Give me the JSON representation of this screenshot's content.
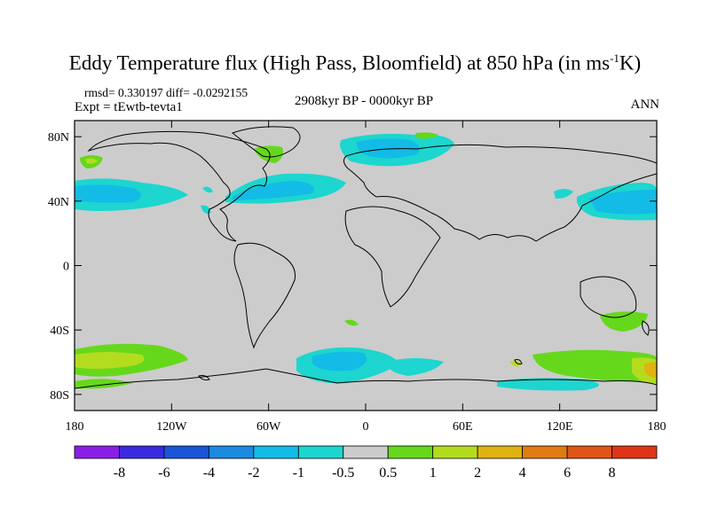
{
  "title": {
    "main": "Eddy Temperature flux (High Pass, Bloomfield) at 850 hPa (in ms",
    "sup": "-1",
    "tail": "K)"
  },
  "stats": "rmsd= 0.330197  diff= -0.0292155",
  "experiment": "Expt = tEwtb-tevta1",
  "period": "2908kyr BP - 0000kyr BP",
  "season": "ANN",
  "axes": {
    "x_ticks": [
      {
        "label": "180",
        "lon": -180
      },
      {
        "label": "120W",
        "lon": -120
      },
      {
        "label": "60W",
        "lon": -60
      },
      {
        "label": "0",
        "lon": 0
      },
      {
        "label": "60E",
        "lon": 60
      },
      {
        "label": "120E",
        "lon": 120
      },
      {
        "label": "180",
        "lon": 180
      }
    ],
    "y_ticks": [
      {
        "label": "80N",
        "lat": 80
      },
      {
        "label": "40N",
        "lat": 40
      },
      {
        "label": "0",
        "lat": 0
      },
      {
        "label": "40S",
        "lat": -40
      },
      {
        "label": "80S",
        "lat": -80
      }
    ],
    "lon_range": [
      -180,
      180
    ],
    "lat_range": [
      -90,
      90
    ]
  },
  "colorbar": {
    "labels": [
      "-8",
      "-6",
      "-4",
      "-2",
      "-1",
      "-0.5",
      "0.5",
      "1",
      "2",
      "4",
      "6",
      "8"
    ],
    "colors": [
      "#8a1ee6",
      "#3a2ae0",
      "#1a55d8",
      "#1a8ae0",
      "#12bce6",
      "#1cd6cf",
      "#cccccc",
      "#66d81c",
      "#b4dc1e",
      "#e0b212",
      "#e07c12",
      "#e05418",
      "#e03418"
    ]
  },
  "colors": {
    "background_field": "#cccccc",
    "land_outline": "#000000",
    "neg_05_1": "#1cd6cf",
    "neg_1_2": "#12bce6",
    "pos_05_1": "#66d81c",
    "pos_1_2": "#b4dc1e",
    "pos_2_4": "#e0b212"
  }
}
